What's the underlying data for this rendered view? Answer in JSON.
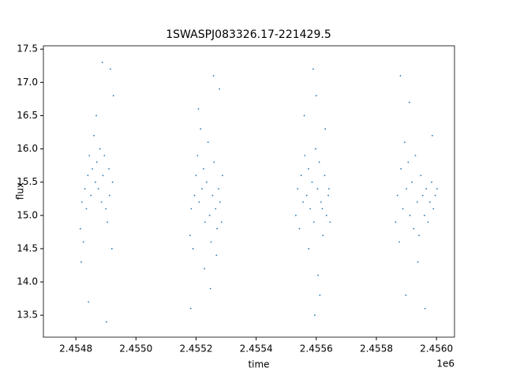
{
  "chart_data": {
    "type": "scatter",
    "title": "1SWASPJ083326.17-221429.5",
    "x_label": "time",
    "y_label": "flux",
    "x_offset_label": "1e6",
    "color": "#1f77b4",
    "xlim": [
      2454692,
      2456060
    ],
    "ylim": [
      13.17,
      17.55
    ],
    "xticks": [
      {
        "value": 2454800,
        "label": "2.4548"
      },
      {
        "value": 2455000,
        "label": "2.4550"
      },
      {
        "value": 2455200,
        "label": "2.4552"
      },
      {
        "value": 2455400,
        "label": "2.4554"
      },
      {
        "value": 2455600,
        "label": "2.4556"
      },
      {
        "value": 2455800,
        "label": "2.4558"
      },
      {
        "value": 2456000,
        "label": "2.4560"
      }
    ],
    "yticks": [
      13.5,
      {
        "value": 14,
        "label": "14.0"
      },
      14.5,
      {
        "value": 15,
        "label": "15.0"
      },
      15.5,
      {
        "value": 16,
        "label": "16.0"
      },
      16.5,
      {
        "value": 17,
        "label": "17.0"
      },
      17.5
    ],
    "x": [
      2454815,
      2454820,
      2454825,
      2454830,
      2454835,
      2454840,
      2454845,
      2454850,
      2454855,
      2454860,
      2454865,
      2454870,
      2454875,
      2454880,
      2454885,
      2454890,
      2454895,
      2454900,
      2454905,
      2454910,
      2454915,
      2454920,
      2454925,
      2454818,
      2454842,
      2454868,
      2454888,
      2454902,
      2454912,
      2454922,
      2455180,
      2455184,
      2455190,
      2455195,
      2455200,
      2455205,
      2455210,
      2455215,
      2455220,
      2455225,
      2455230,
      2455235,
      2455240,
      2455245,
      2455250,
      2455255,
      2455260,
      2455265,
      2455270,
      2455275,
      2455280,
      2455285,
      2455288,
      2455182,
      2455208,
      2455228,
      2455248,
      2455258,
      2455268,
      2455278,
      2455532,
      2455538,
      2455544,
      2455550,
      2455556,
      2455562,
      2455568,
      2455574,
      2455580,
      2455586,
      2455592,
      2455598,
      2455604,
      2455610,
      2455616,
      2455622,
      2455628,
      2455634,
      2455640,
      2455646,
      2455560,
      2455575,
      2455590,
      2455595,
      2455600,
      2455606,
      2455612,
      2455620,
      2455630,
      2455642,
      2455864,
      2455870,
      2455876,
      2455882,
      2455888,
      2455894,
      2455900,
      2455906,
      2455912,
      2455918,
      2455924,
      2455930,
      2455936,
      2455942,
      2455948,
      2455954,
      2455960,
      2455966,
      2455972,
      2455978,
      2455984,
      2455990,
      2455996,
      2456002,
      2455880,
      2455898,
      2455910,
      2455938,
      2455962,
      2455986
    ],
    "y": [
      14.8,
      15.2,
      14.6,
      15.4,
      15.1,
      15.6,
      15.9,
      15.3,
      15.7,
      16.2,
      15.5,
      15.8,
      15.4,
      16.0,
      15.2,
      15.6,
      15.9,
      15.1,
      14.9,
      15.7,
      17.2,
      14.5,
      16.8,
      14.3,
      13.7,
      16.5,
      17.3,
      13.4,
      15.3,
      15.5,
      14.7,
      15.1,
      14.5,
      15.3,
      15.6,
      15.9,
      15.2,
      16.3,
      15.4,
      15.7,
      14.9,
      15.5,
      16.1,
      15.0,
      14.6,
      15.3,
      15.8,
      15.1,
      14.8,
      15.4,
      15.2,
      14.9,
      15.6,
      13.6,
      16.6,
      14.2,
      13.9,
      17.1,
      14.4,
      16.9,
      15.0,
      15.4,
      14.8,
      15.6,
      15.2,
      15.9,
      15.3,
      15.7,
      15.1,
      15.5,
      14.9,
      16.0,
      15.4,
      15.8,
      15.2,
      14.7,
      15.6,
      15.0,
      15.3,
      14.9,
      16.5,
      14.5,
      17.2,
      13.5,
      16.8,
      14.1,
      13.8,
      15.1,
      16.3,
      15.4,
      14.9,
      15.3,
      14.6,
      15.7,
      15.1,
      16.1,
      15.4,
      15.8,
      15.0,
      15.5,
      14.8,
      15.9,
      15.2,
      14.7,
      15.6,
      15.3,
      15.0,
      15.4,
      14.9,
      15.2,
      15.5,
      15.1,
      15.3,
      15.4,
      17.1,
      13.8,
      16.7,
      14.3,
      13.6,
      16.2
    ]
  }
}
